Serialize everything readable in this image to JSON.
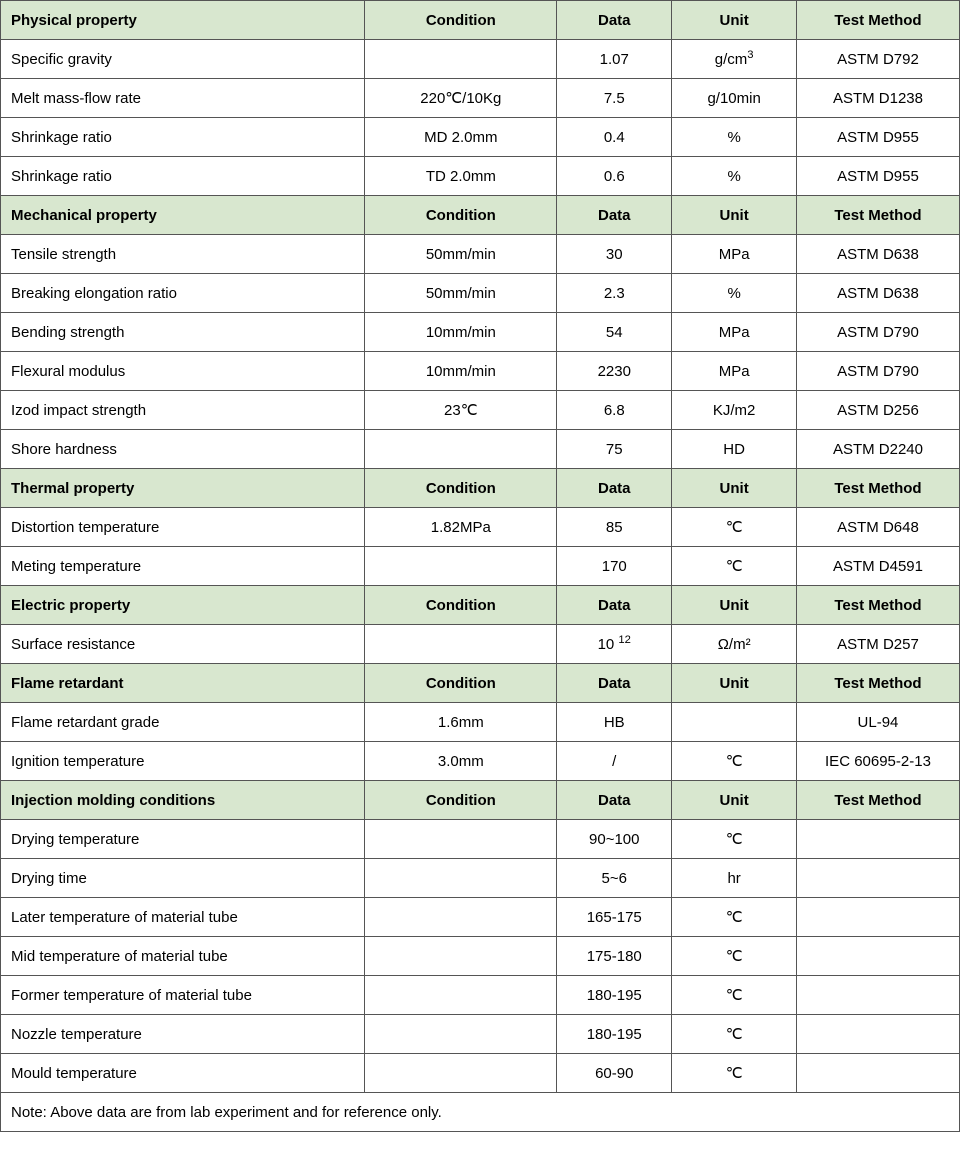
{
  "colors": {
    "section_bg": "#d8e7cf",
    "border": "#555555",
    "text": "#000000",
    "bg": "#ffffff"
  },
  "columns": [
    "Condition",
    "Data",
    "Unit",
    "Test Method"
  ],
  "sections": [
    {
      "title": "Physical property",
      "rows": [
        {
          "name": "Specific gravity",
          "cond": "",
          "data": "1.07",
          "unit_html": "g/cm<sup>3</sup>",
          "method": "ASTM D792"
        },
        {
          "name": "Melt mass-flow rate",
          "cond": "220℃/10Kg",
          "data": "7.5",
          "unit": "g/10min",
          "method": "ASTM D1238"
        },
        {
          "name": "Shrinkage ratio",
          "cond": "MD 2.0mm",
          "data": "0.4",
          "unit": "%",
          "method": "ASTM D955"
        },
        {
          "name": "Shrinkage ratio",
          "cond": "TD 2.0mm",
          "data": "0.6",
          "unit": "%",
          "method": "ASTM D955"
        }
      ]
    },
    {
      "title": "Mechanical property",
      "rows": [
        {
          "name": "Tensile strength",
          "cond": "50mm/min",
          "data": "30",
          "unit": "MPa",
          "method": "ASTM D638"
        },
        {
          "name": "Breaking elongation ratio",
          "cond": "50mm/min",
          "data": "2.3",
          "unit": "%",
          "method": "ASTM D638"
        },
        {
          "name": "Bending strength",
          "cond": "10mm/min",
          "data": "54",
          "unit": "MPa",
          "method": "ASTM D790"
        },
        {
          "name": "Flexural modulus",
          "cond": "10mm/min",
          "data": "2230",
          "unit": "MPa",
          "method": "ASTM D790"
        },
        {
          "name": "Izod impact strength",
          "cond": "23℃",
          "data": "6.8",
          "unit": "KJ/m2",
          "method": "ASTM D256"
        },
        {
          "name": "Shore hardness",
          "cond": "",
          "data": "75",
          "unit": "HD",
          "method": "ASTM D2240"
        }
      ]
    },
    {
      "title": "Thermal property",
      "rows": [
        {
          "name": "Distortion temperature",
          "cond": "1.82MPa",
          "data": "85",
          "unit": "℃",
          "method": "ASTM D648"
        },
        {
          "name": "Meting temperature",
          "cond": "",
          "data": "170",
          "unit": "℃",
          "method": "ASTM D4591"
        }
      ]
    },
    {
      "title": "Electric property",
      "rows": [
        {
          "name": "Surface resistance",
          "cond": "",
          "data_html": "10 <sup>12</sup>",
          "unit": "Ω/m²",
          "method": "ASTM D257"
        }
      ]
    },
    {
      "title": "Flame retardant",
      "rows": [
        {
          "name": "Flame retardant grade",
          "cond": "1.6mm",
          "data": "HB",
          "unit": "",
          "method": "UL-94"
        },
        {
          "name": "Ignition temperature",
          "cond": "3.0mm",
          "data": "/",
          "unit": "℃",
          "method": "IEC 60695-2-13"
        }
      ]
    },
    {
      "title": "Injection molding conditions",
      "rows": [
        {
          "name": "Drying temperature",
          "cond": "",
          "data": "90~100",
          "unit": "℃",
          "method": ""
        },
        {
          "name": "Drying time",
          "cond": "",
          "data": "5~6",
          "unit": "hr",
          "method": ""
        },
        {
          "name": "Later temperature of material tube",
          "cond": "",
          "data": "165-175",
          "unit": "℃",
          "method": ""
        },
        {
          "name": "Mid temperature of material tube",
          "cond": "",
          "data": "175-180",
          "unit": "℃",
          "method": ""
        },
        {
          "name": "Former temperature of material tube",
          "cond": "",
          "data": "180-195",
          "unit": "℃",
          "method": ""
        },
        {
          "name": "Nozzle temperature",
          "cond": "",
          "data": "180-195",
          "unit": "℃",
          "method": ""
        },
        {
          "name": "Mould temperature",
          "cond": "",
          "data": "60-90",
          "unit": "℃",
          "method": ""
        }
      ]
    }
  ],
  "note": "Note: Above data are from lab experiment and for reference only."
}
